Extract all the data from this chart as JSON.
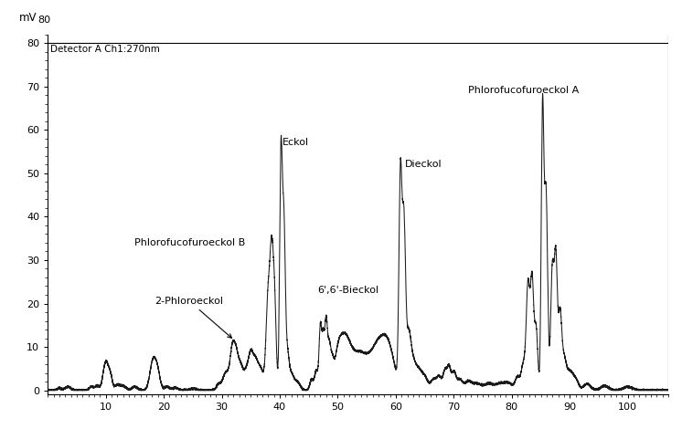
{
  "title": "Detector A Ch1:270nm",
  "ylabel": "mV",
  "xlim": [
    0,
    107
  ],
  "ylim": [
    -1,
    82
  ],
  "yticks": [
    0,
    10,
    20,
    30,
    40,
    50,
    60,
    70,
    80
  ],
  "xticks": [
    10,
    20,
    30,
    40,
    50,
    60,
    70,
    80,
    90,
    100
  ],
  "background_color": "#ffffff",
  "line_color": "#1a1a1a",
  "annot_fontsize": 8.0
}
